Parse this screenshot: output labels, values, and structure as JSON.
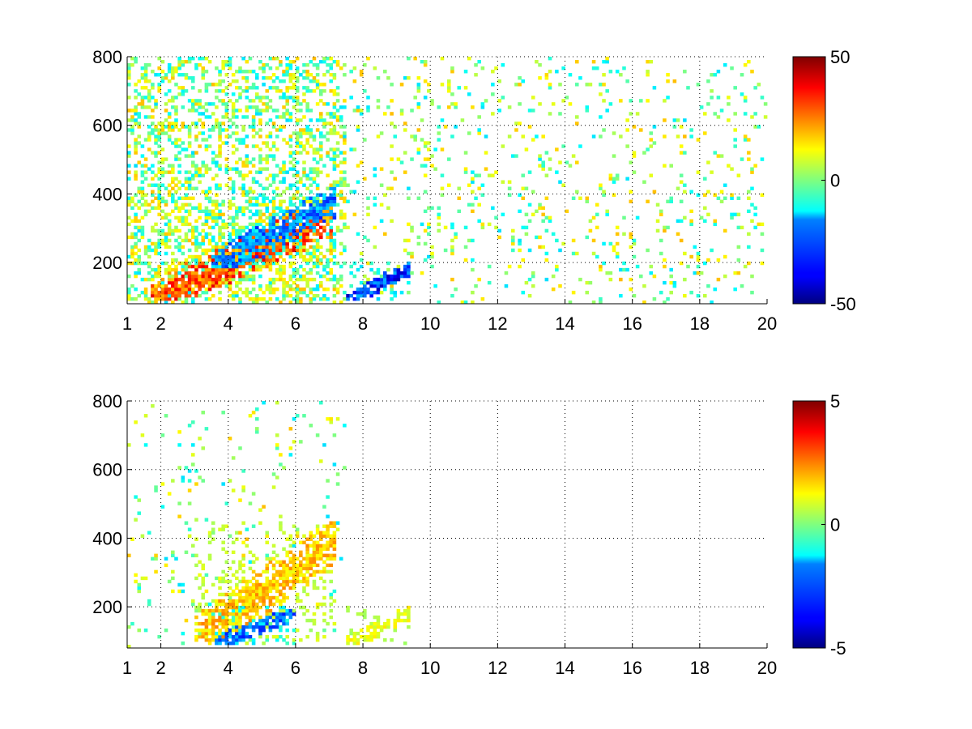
{
  "chart_data": [
    {
      "type": "heatmap",
      "title": "",
      "xlabel": "",
      "ylabel": "",
      "xlim": [
        1,
        20
      ],
      "ylim": [
        80,
        800
      ],
      "xticks": [
        "1",
        "2",
        "4",
        "6",
        "8",
        "10",
        "12",
        "14",
        "16",
        "18",
        "20"
      ],
      "xtick_values": [
        1,
        2,
        4,
        6,
        8,
        10,
        12,
        14,
        16,
        18,
        20
      ],
      "yticks": [
        "200",
        "400",
        "600",
        "800"
      ],
      "ytick_values": [
        200,
        400,
        600,
        800
      ],
      "grid": true,
      "colormap": "jet",
      "colorbar": {
        "min": -50,
        "max": 50,
        "ticks": [
          "-50",
          "0",
          "50"
        ],
        "tick_values": [
          -50,
          0,
          50
        ]
      },
      "bands": [
        {
          "x_start": 1.7,
          "x_end": 7.1,
          "y_start": 90,
          "y_end": 380,
          "value": 40
        },
        {
          "x_start": 3.5,
          "x_end": 7.2,
          "y_start": 180,
          "y_end": 420,
          "value": -35
        },
        {
          "x_start": 7.5,
          "x_end": 9.4,
          "y_start": 90,
          "y_end": 200,
          "value": -45
        }
      ],
      "coverage_max_x": 20
    },
    {
      "type": "heatmap",
      "title": "",
      "xlabel": "",
      "ylabel": "",
      "xlim": [
        1,
        20
      ],
      "ylim": [
        80,
        800
      ],
      "xticks": [
        "1",
        "2",
        "4",
        "6",
        "8",
        "10",
        "12",
        "14",
        "16",
        "18",
        "20"
      ],
      "xtick_values": [
        1,
        2,
        4,
        6,
        8,
        10,
        12,
        14,
        16,
        18,
        20
      ],
      "yticks": [
        "200",
        "400",
        "600",
        "800"
      ],
      "ytick_values": [
        200,
        400,
        600,
        800
      ],
      "grid": true,
      "colormap": "jet",
      "colorbar": {
        "min": -5,
        "max": 5,
        "ticks": [
          "-5",
          "0",
          "5"
        ],
        "tick_values": [
          -5,
          0,
          5
        ]
      },
      "bands": [
        {
          "x_start": 3.0,
          "x_end": 7.2,
          "y_start": 100,
          "y_end": 450,
          "value": 2.5
        },
        {
          "x_start": 3.5,
          "x_end": 6.0,
          "y_start": 90,
          "y_end": 200,
          "value": -3.5
        },
        {
          "x_start": 7.5,
          "x_end": 9.4,
          "y_start": 90,
          "y_end": 200,
          "value": 1.5
        }
      ],
      "coverage_max_x": 9.4
    }
  ]
}
